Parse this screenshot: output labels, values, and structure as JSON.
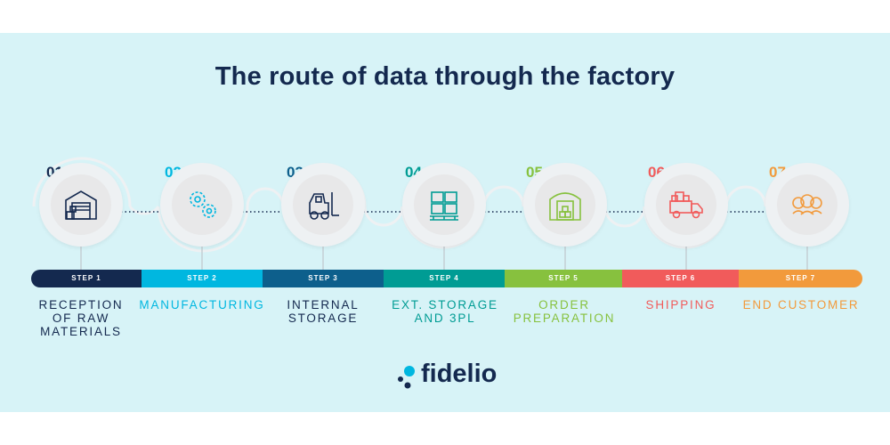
{
  "title": "The route of data through the factory",
  "brand": {
    "name": "fidelio",
    "accent": "#00b7e0",
    "dark": "#14294f"
  },
  "steps": [
    {
      "num": "01.",
      "bar": "STEP 1",
      "label": "RECEPTION\nOF RAW\nMATERIALS",
      "color": "#14294f",
      "icon": "warehouse-icon"
    },
    {
      "num": "02.",
      "bar": "STEP 2",
      "label": "MANUFACTURING",
      "color": "#00b7e0",
      "icon": "gears-icon"
    },
    {
      "num": "03.",
      "bar": "STEP 3",
      "label": "INTERNAL\nSTORAGE",
      "color": "#0d5f8c",
      "icon": "forklift-icon"
    },
    {
      "num": "04.",
      "bar": "STEP 4",
      "label": "EXT. STORAGE\nAND 3PL",
      "color": "#009c94",
      "icon": "pallet-boxes-icon"
    },
    {
      "num": "05.",
      "bar": "STEP 5",
      "label": "ORDER\nPREPARATION",
      "color": "#87c13e",
      "icon": "hangar-boxes-icon"
    },
    {
      "num": "06.",
      "bar": "STEP 6",
      "label": "SHIPPING",
      "color": "#f15b5b",
      "icon": "truck-icon"
    },
    {
      "num": "07.",
      "bar": "STEP 7",
      "label": "END CUSTOMER",
      "color": "#f29a3c",
      "icon": "customers-icon"
    }
  ]
}
